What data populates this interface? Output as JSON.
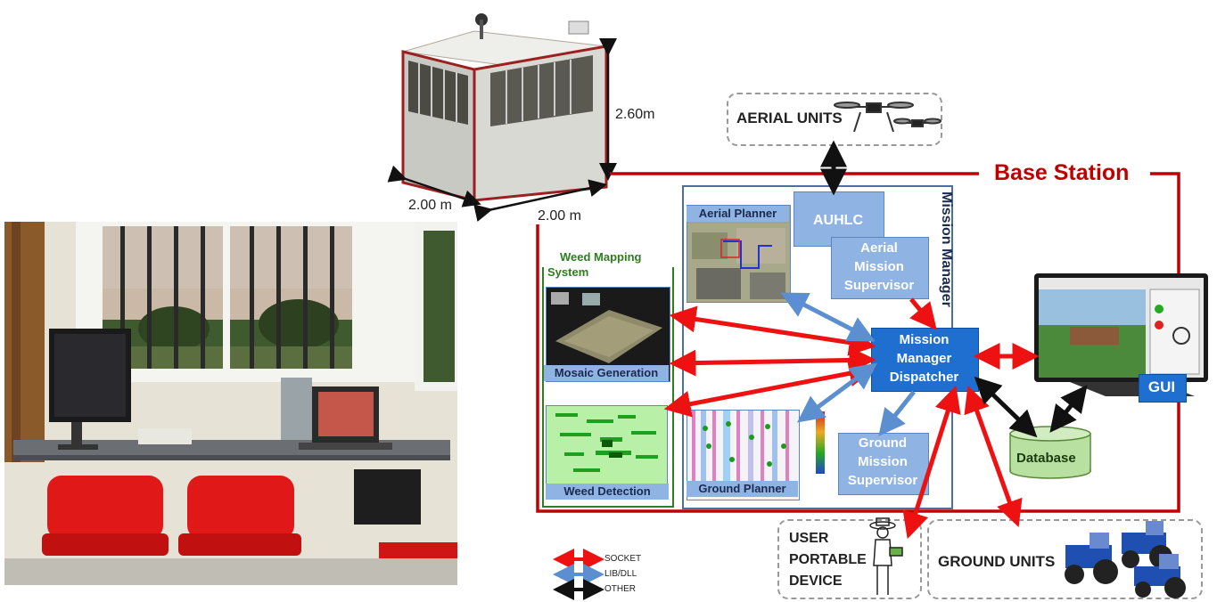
{
  "dimensions": {
    "height": "2.60m",
    "width": "2.00 m",
    "depth": "2.00 m"
  },
  "base_station_label": "Base Station",
  "aerial_units_label": "AERIAL UNITS",
  "ground_units_label": "GROUND UNITS",
  "user_device_label": [
    "USER",
    "PORTABLE",
    "DEVICE"
  ],
  "mission_manager_label": "Mission Manager",
  "auhlc_label": "AUHLC",
  "aerial_supervisor_label": [
    "Aerial",
    "Mission",
    "Supervisor"
  ],
  "ground_supervisor_label": [
    "Ground",
    "Mission",
    "Supervisor"
  ],
  "dispatcher_label": [
    "Mission",
    "Manager",
    "Dispatcher"
  ],
  "aerial_planner_label": "Aerial Planner",
  "ground_planner_label": "Ground Planner",
  "weed_mapping_label": [
    "Weed Mapping",
    "System"
  ],
  "mosaic_label": "Mosaic  Generation",
  "weed_detection_label": "Weed Detection",
  "database_label": "Database",
  "gui_label": "GUI",
  "legend": [
    {
      "label": "SOCKET",
      "color": "#ee1111"
    },
    {
      "label": "LIB/DLL",
      "color": "#5b8fd0"
    },
    {
      "label": "OTHER",
      "color": "#111111"
    }
  ],
  "colors": {
    "base_frame": "#c00000",
    "weed_frame": "#2e7d1e",
    "blue_box": "#8fb4e3",
    "dispatcher": "#1f6fd0"
  }
}
